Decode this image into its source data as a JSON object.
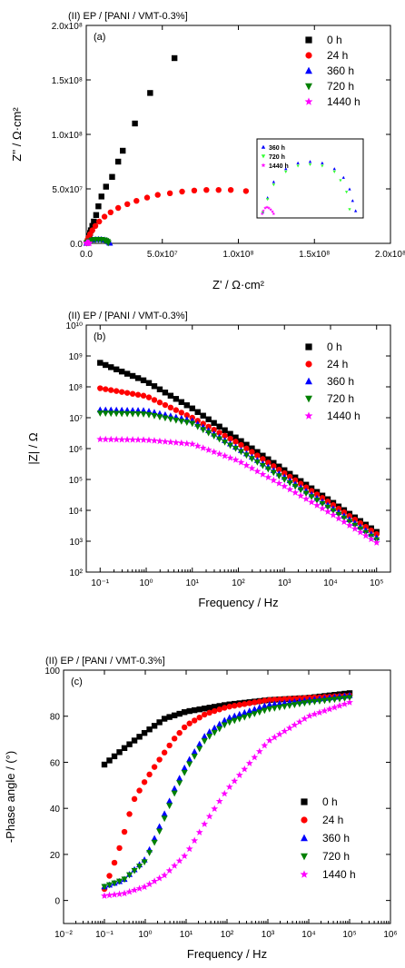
{
  "colors": {
    "s0": "#000000",
    "s24": "#ff0000",
    "s360": "#0000ff",
    "s720": "#008000",
    "s720a": "#33ff33",
    "s1440": "#ff00ff"
  },
  "chart_data": [
    {
      "id": "a",
      "type": "scatter",
      "title": "(II) EP / [PANI / VMT-0.3%]",
      "panel": "(a)",
      "xlabel": "Z' / Ω·cm²",
      "ylabel": "Z'' / Ω·cm²",
      "xlim": [
        0,
        200000000.0
      ],
      "ylim": [
        0,
        200000000.0
      ],
      "xticks": [
        "0.0",
        "5.0x10⁷",
        "1.0x10⁸",
        "1.5x10⁸",
        "2.0x10⁸"
      ],
      "yticks": [
        "0.0",
        "5.0x10⁷",
        "1.0x10⁸",
        "1.5x10⁸",
        "2.0x10⁸"
      ],
      "legend": {
        "placement": "top-right",
        "entries": [
          "0 h",
          "24 h",
          "360 h",
          "720 h",
          "1440 h"
        ]
      },
      "inset_legend": [
        "360 h",
        "720 h",
        "1440 h"
      ],
      "series": [
        {
          "name": "0 h",
          "marker": "square",
          "color": "#000000",
          "x": [
            500000,
            1000000,
            1500000,
            2000000,
            2500000,
            3000000,
            4000000,
            5000000,
            6500000,
            8000000,
            10000000,
            13000000,
            17000000,
            21000000,
            24000000,
            32000000,
            42000000,
            58000000
          ],
          "y": [
            500000,
            2000000,
            4000000,
            7000000,
            9500000,
            12000000,
            16000000,
            20000000,
            26000000,
            34000000,
            43000000,
            52000000,
            61000000,
            75000000,
            85000000,
            110000000,
            138000000,
            170000000
          ]
        },
        {
          "name": "24 h",
          "marker": "circle",
          "color": "#ff0000",
          "x": [
            300000,
            800000,
            1500000,
            2500000,
            4000000,
            6000000,
            8500000,
            12000000,
            16000000,
            21000000,
            27000000,
            33000000,
            40000000,
            47000000,
            55000000,
            63000000,
            71000000,
            79000000,
            87000000,
            95000000,
            105000000
          ],
          "y": [
            1000000,
            3000000,
            5500000,
            8500000,
            12000000,
            16000000,
            20000000,
            24500000,
            28500000,
            32500000,
            36000000,
            39000000,
            42000000,
            44500000,
            46000000,
            47500000,
            48500000,
            49000000,
            49000000,
            49000000,
            48000000
          ]
        },
        {
          "name": "360 h",
          "marker": "triangle-up",
          "color": "#0000ff",
          "x": [
            200000,
            1000000,
            2000000,
            4000000,
            6000000,
            8000000,
            10000000,
            12000000,
            13500000,
            14500000,
            15000000,
            15500000
          ],
          "y": [
            200000,
            1200000,
            2300000,
            3200000,
            3600000,
            3700000,
            3600000,
            3200000,
            2600000,
            1800000,
            1000000,
            300000
          ]
        },
        {
          "name": "720 h",
          "marker": "triangle-down",
          "color": "#008000",
          "x": [
            200000,
            1000000,
            2000000,
            4000000,
            6000000,
            8000000,
            10000000,
            12000000,
            13000000,
            14000000,
            14500000
          ],
          "y": [
            200000,
            1100000,
            2100000,
            3000000,
            3400000,
            3500000,
            3400000,
            3000000,
            2400000,
            1600000,
            400000
          ]
        },
        {
          "name": "1440 h",
          "marker": "star",
          "color": "#ff00ff",
          "x": [
            100000,
            300000,
            600000,
            900000,
            1200000,
            1500000,
            1800000,
            2000000
          ],
          "y": [
            100000,
            300000,
            500000,
            550000,
            500000,
            400000,
            250000,
            100000
          ]
        }
      ]
    },
    {
      "id": "b",
      "type": "scatter",
      "title": "(II) EP / [PANI / VMT-0.3%]",
      "panel": "(b)",
      "xlabel": "Frequency / Hz",
      "ylabel": "|Z| / Ω",
      "xscale": "log",
      "yscale": "log",
      "xlim": [
        0.05,
        200000
      ],
      "ylim": [
        100,
        10000000000
      ],
      "xticks": [
        "10⁻¹",
        "10⁰",
        "10¹",
        "10²",
        "10³",
        "10⁴",
        "10⁵"
      ],
      "yticks": [
        "10²",
        "10³",
        "10⁴",
        "10⁵",
        "10⁶",
        "10⁷",
        "10⁸",
        "10⁹",
        "10¹⁰"
      ],
      "legend": {
        "placement": "top-right",
        "entries": [
          "0 h",
          "24 h",
          "360 h",
          "720 h",
          "1440 h"
        ]
      },
      "series": [
        {
          "name": "0 h",
          "marker": "square",
          "color": "#000000",
          "x": [
            0.1,
            1,
            10,
            100,
            1000,
            10000,
            100000
          ],
          "y": [
            600000000,
            150000000,
            20000000,
            2000000,
            200000,
            20000,
            2000
          ]
        },
        {
          "name": "24 h",
          "marker": "circle",
          "color": "#ff0000",
          "x": [
            0.1,
            1,
            10,
            100,
            1000,
            10000,
            100000
          ],
          "y": [
            90000000,
            50000000,
            10000000,
            1500000,
            160000,
            17000,
            1700
          ]
        },
        {
          "name": "360 h",
          "marker": "triangle-up",
          "color": "#0000ff",
          "x": [
            0.1,
            1,
            10,
            100,
            1000,
            10000,
            100000
          ],
          "y": [
            18000000,
            17000000,
            8000000,
            1000000,
            120000,
            13000,
            1300
          ]
        },
        {
          "name": "720 h",
          "marker": "triangle-down",
          "color": "#008000",
          "x": [
            0.1,
            1,
            10,
            100,
            1000,
            10000,
            100000
          ],
          "y": [
            14000000,
            13000000,
            6500000,
            900000,
            100000,
            11000,
            1100
          ]
        },
        {
          "name": "1440 h",
          "marker": "star",
          "color": "#ff00ff",
          "x": [
            0.1,
            1,
            10,
            100,
            1000,
            10000,
            100000
          ],
          "y": [
            2000000,
            1900000,
            1400000,
            400000,
            60000,
            8000,
            900
          ]
        }
      ]
    },
    {
      "id": "c",
      "type": "scatter",
      "title": "(II) EP / [PANI / VMT-0.3%]",
      "panel": "(c)",
      "xlabel": "Frequency / Hz",
      "ylabel": "-Phase angle / (°)",
      "xscale": "log",
      "xlim": [
        0.01,
        1000000
      ],
      "ylim": [
        -10,
        100
      ],
      "xticks": [
        "10⁻²",
        "10⁻¹",
        "10⁰",
        "10¹",
        "10²",
        "10³",
        "10⁴",
        "10⁵",
        "10⁶"
      ],
      "yticks": [
        "0",
        "20",
        "40",
        "60",
        "80",
        "100"
      ],
      "legend": {
        "placement": "bottom-right",
        "entries": [
          "0 h",
          "24 h",
          "360 h",
          "720 h",
          "1440 h"
        ]
      },
      "series": [
        {
          "name": "0 h",
          "marker": "square",
          "color": "#000000",
          "x": [
            0.1,
            0.3,
            1,
            3,
            10,
            100,
            1000,
            10000,
            100000
          ],
          "y": [
            59,
            66,
            73,
            79,
            82,
            85,
            87,
            88,
            90
          ]
        },
        {
          "name": "24 h",
          "marker": "circle",
          "color": "#ff0000",
          "x": [
            0.1,
            0.2,
            0.3,
            0.5,
            1,
            2,
            5,
            10,
            30,
            100,
            1000,
            10000,
            100000
          ],
          "y": [
            5,
            19,
            29,
            43,
            52,
            60,
            70,
            76,
            81,
            84,
            87,
            88,
            89
          ]
        },
        {
          "name": "360 h",
          "marker": "triangle-up",
          "color": "#0000ff",
          "x": [
            0.1,
            0.3,
            1,
            2,
            5,
            10,
            30,
            100,
            1000,
            10000,
            100000
          ],
          "y": [
            6,
            9,
            18,
            30,
            48,
            59,
            72,
            79,
            85,
            87,
            89
          ]
        },
        {
          "name": "720 h",
          "marker": "triangle-down",
          "color": "#008000",
          "x": [
            0.1,
            0.3,
            1,
            2,
            5,
            10,
            30,
            100,
            1000,
            10000,
            100000
          ],
          "y": [
            6,
            9,
            17,
            28,
            46,
            57,
            70,
            77,
            83,
            86,
            88
          ]
        },
        {
          "name": "1440 h",
          "marker": "star",
          "color": "#ff00ff",
          "x": [
            0.1,
            0.3,
            1,
            3,
            10,
            30,
            100,
            1000,
            10000,
            100000
          ],
          "y": [
            2,
            3,
            6,
            11,
            20,
            34,
            48,
            69,
            80,
            86
          ]
        }
      ]
    }
  ]
}
